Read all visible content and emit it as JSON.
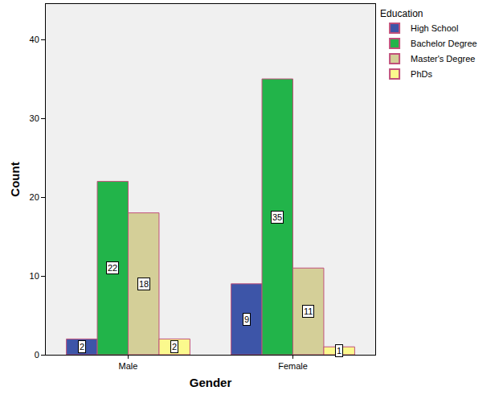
{
  "chart_data": {
    "type": "bar",
    "x_label": "Gender",
    "y_label": "Count",
    "legend_title": "Education",
    "categories": [
      "Male",
      "Female"
    ],
    "series": [
      {
        "name": "High School",
        "color": "#3d55a8",
        "values": [
          2,
          9
        ]
      },
      {
        "name": "Bachelor Degree",
        "color": "#22b44a",
        "values": [
          22,
          35
        ]
      },
      {
        "name": "Master's Degree",
        "color": "#d4cf98",
        "values": [
          18,
          11
        ]
      },
      {
        "name": "PhDs",
        "color": "#fbf98d",
        "values": [
          2,
          1
        ]
      }
    ],
    "ylim": [
      0,
      44.5
    ],
    "yticks": [
      0,
      10,
      20,
      30,
      40
    ],
    "grid": false,
    "legend": "top right",
    "data_labels": true
  }
}
